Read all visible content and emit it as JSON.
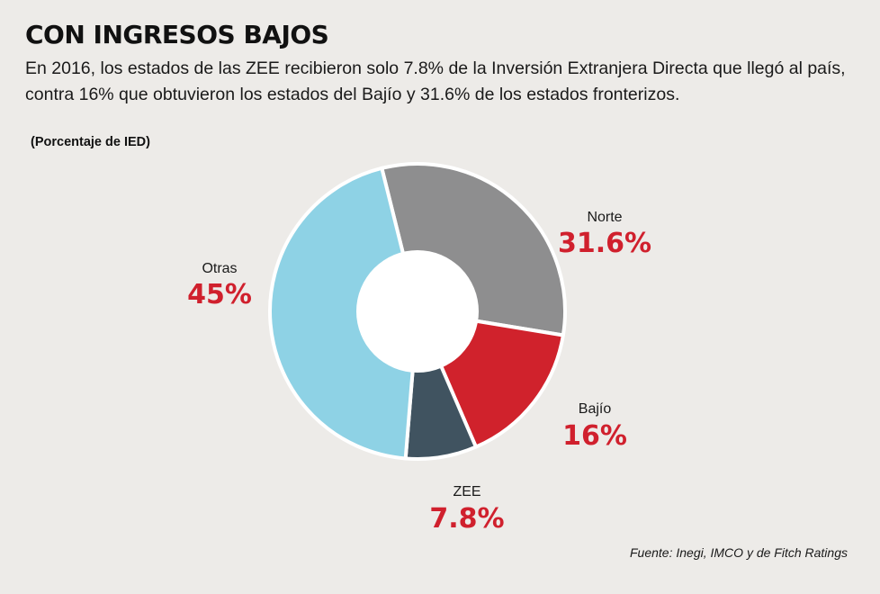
{
  "header": {
    "title": "CON INGRESOS BAJOS",
    "subtitle_line1": "En 2016, los estados de las ZEE recibieron solo 7.8% de la Inversión Extranjera Directa que llegó al país,",
    "subtitle_line2": "contra 16% que obtuvieron los estados del Bajío y 31.6% de los estados fronterizos.",
    "unit_label": "(Porcentaje de IED)"
  },
  "footer": {
    "source": "Fuente: Inegi, IMCO y de Fitch Ratings"
  },
  "colors": {
    "background": "#edebe8",
    "value_text": "#d0202d",
    "hole": "#ffffff",
    "separator": "#ffffff"
  },
  "chart_data": {
    "type": "pie",
    "style": "donut",
    "title": "CON INGRESOS BAJOS",
    "unit": "Porcentaje de IED",
    "slices": [
      {
        "key": "norte",
        "name": "Norte",
        "value": 31.6,
        "display": "31.6%",
        "color": "#8e8e8f"
      },
      {
        "key": "bajio",
        "name": "Bajío",
        "value": 16,
        "display": "16%",
        "color": "#d0222c"
      },
      {
        "key": "zee",
        "name": "ZEE",
        "value": 7.8,
        "display": "7.8%",
        "color": "#405360"
      },
      {
        "key": "otras",
        "name": "Otras",
        "value": 45,
        "display": "45%",
        "color": "#8ed2e5"
      }
    ]
  }
}
